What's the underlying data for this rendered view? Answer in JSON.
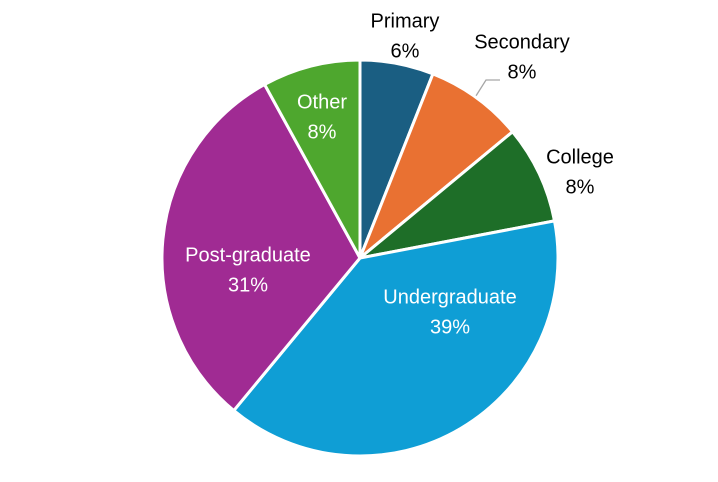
{
  "chart_data": {
    "type": "pie",
    "categories": [
      "Primary",
      "Secondary",
      "College",
      "Undergraduate",
      "Post-graduate",
      "Other"
    ],
    "values": [
      6,
      8,
      8,
      39,
      31,
      8
    ],
    "value_labels": [
      "6%",
      "8%",
      "8%",
      "39%",
      "31%",
      "8%"
    ],
    "colors": [
      "#1a5e82",
      "#e97132",
      "#1e6e28",
      "#0f9ed5",
      "#a02b93",
      "#4ea72e"
    ]
  }
}
